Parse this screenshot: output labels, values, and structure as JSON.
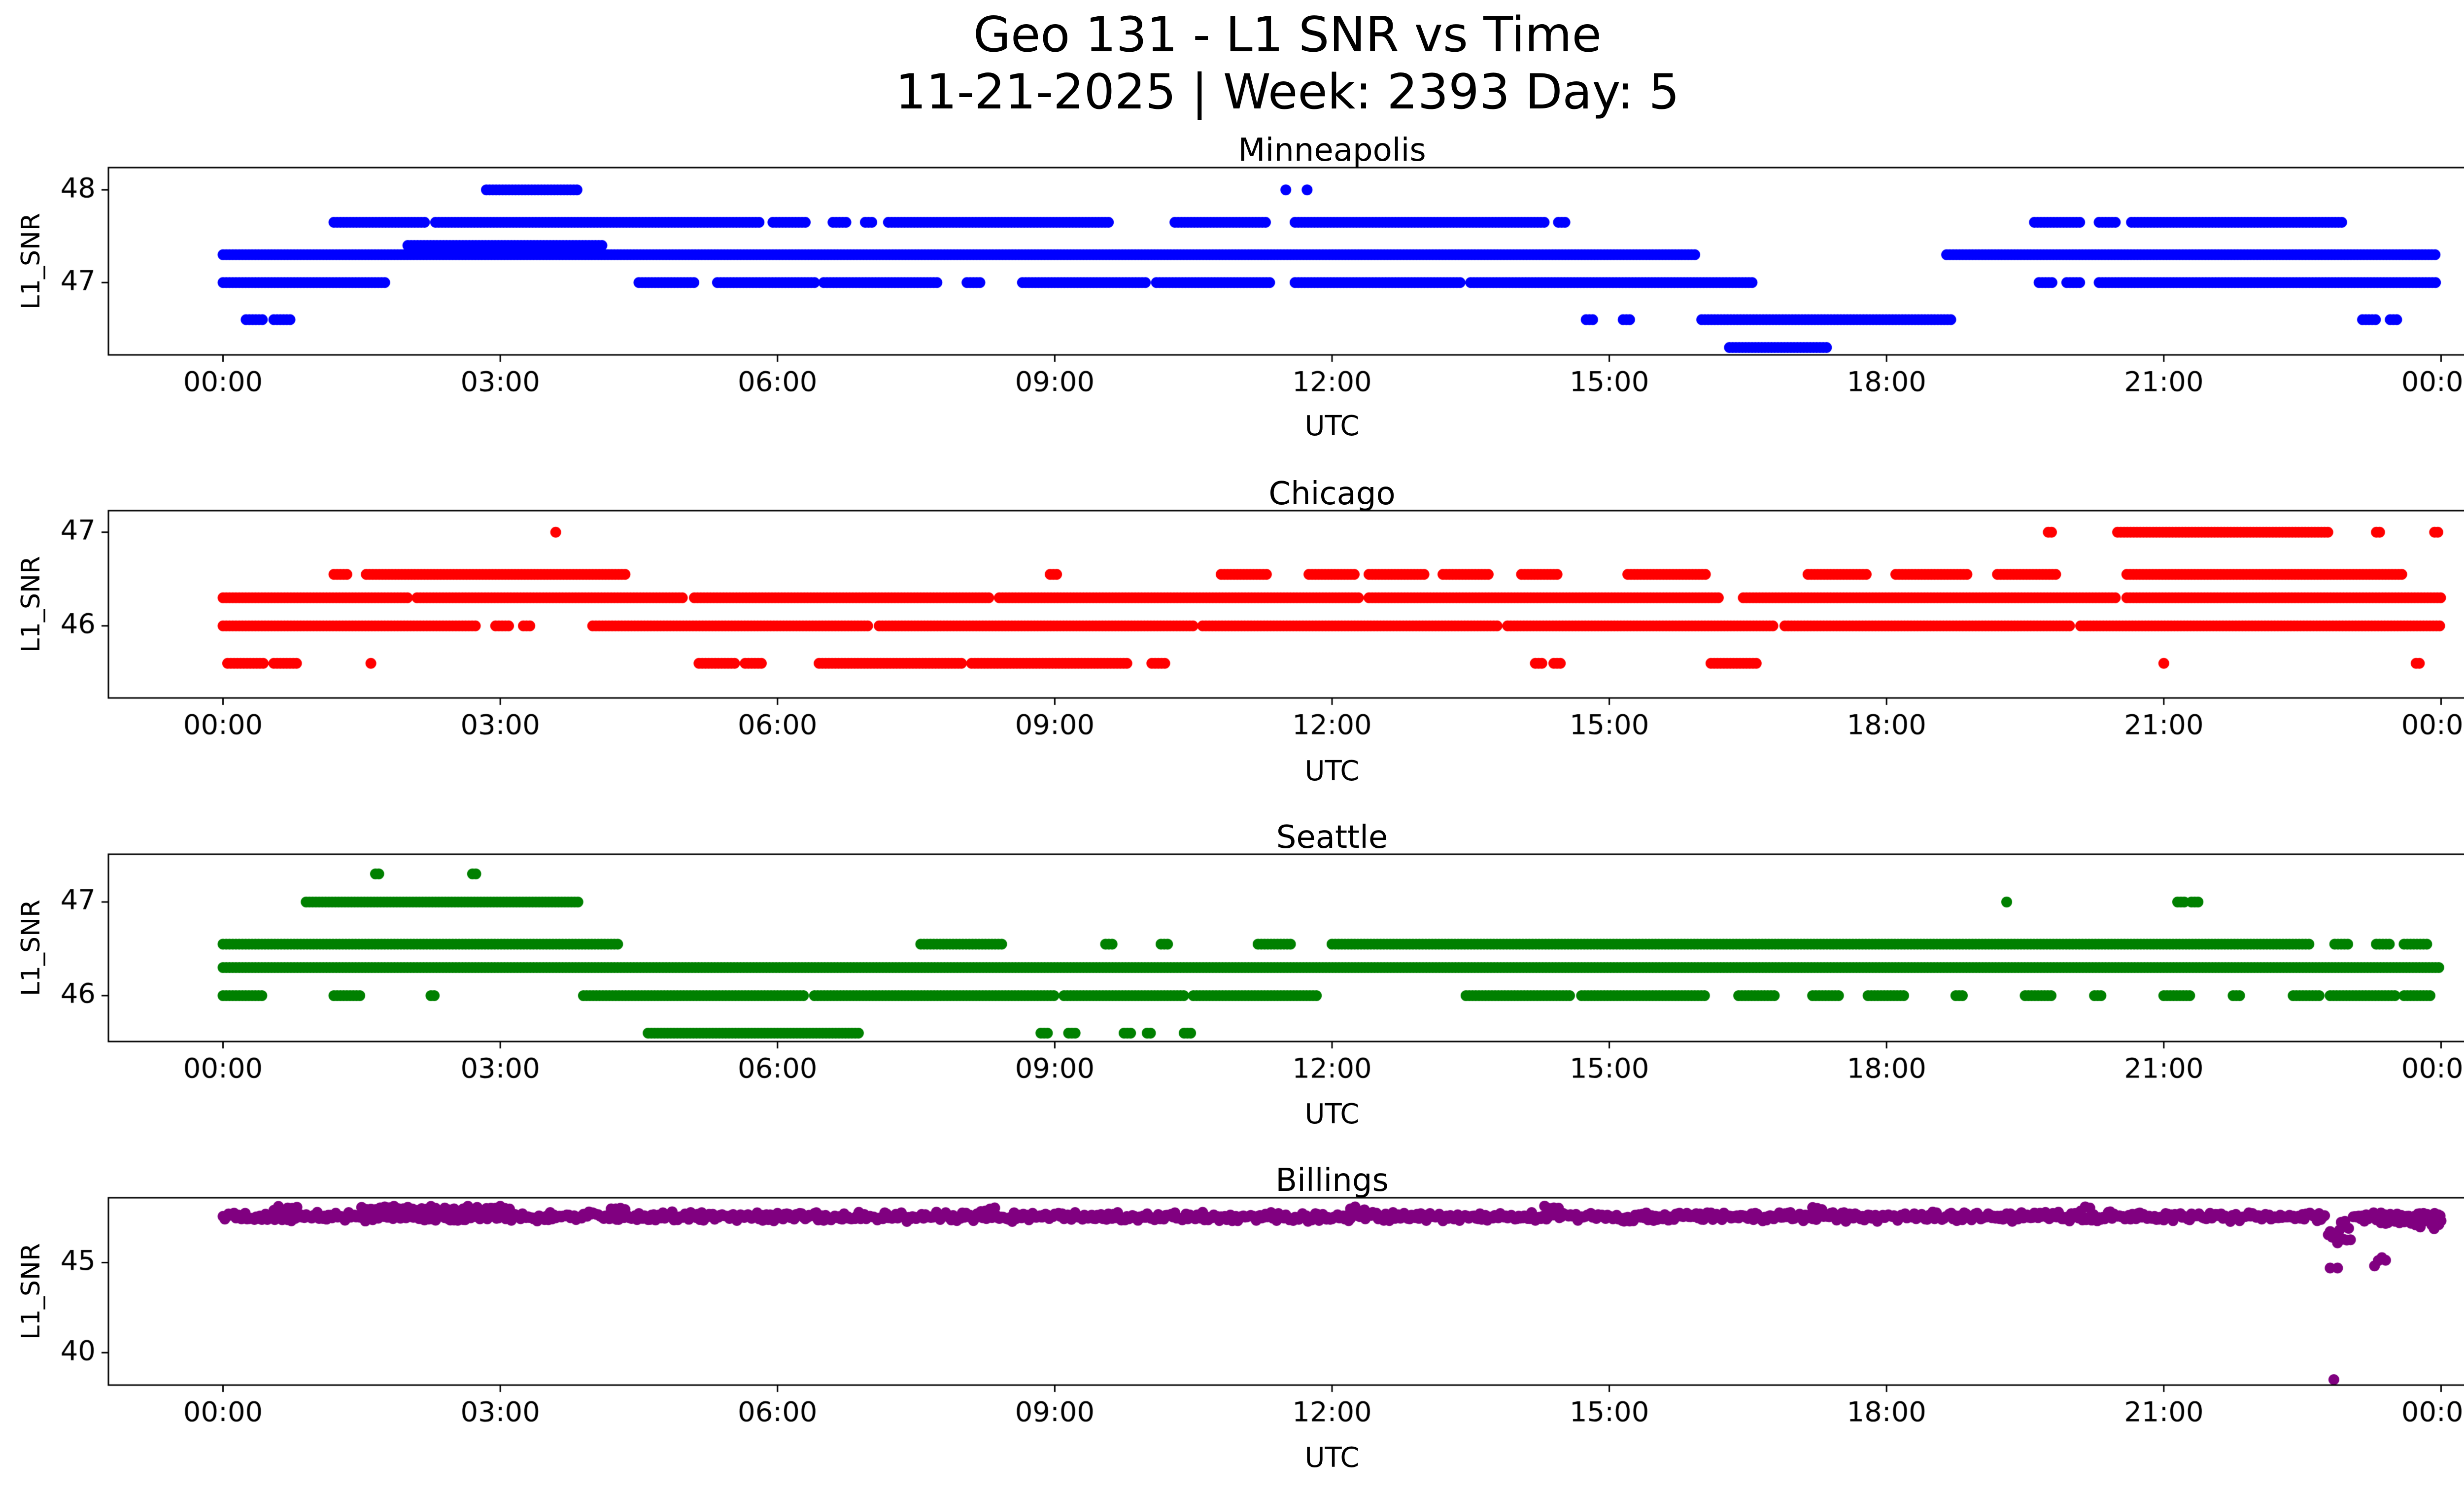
{
  "figure": {
    "title_line1": "Geo 131 - L1 SNR vs Time",
    "title_line2": "11-21-2025 | Week: 2393 Day: 5"
  },
  "chart_data": [
    {
      "type": "scatter",
      "title": "Minneapolis",
      "xlabel": "UTC",
      "ylabel": "L1_SNR",
      "color": "#0000ff",
      "xlim": [
        -1.24,
        25.24
      ],
      "ylim": [
        46.22,
        48.24
      ],
      "xticks": [
        0,
        3,
        6,
        9,
        12,
        15,
        18,
        21,
        24
      ],
      "xtick_labels": [
        "00:00",
        "03:00",
        "06:00",
        "09:00",
        "12:00",
        "15:00",
        "18:00",
        "21:00",
        "00:00"
      ],
      "yticks": [
        47,
        48
      ],
      "levels": [
        {
          "y": 48.0,
          "segments": [
            [
              2.85,
              3.85
            ],
            [
              11.5,
              11.52
            ],
            [
              11.73,
              11.75
            ]
          ]
        },
        {
          "y": 47.65,
          "segments": [
            [
              1.2,
              2.2
            ],
            [
              2.3,
              5.8
            ],
            [
              5.95,
              6.3
            ],
            [
              6.6,
              6.75
            ],
            [
              6.95,
              7.05
            ],
            [
              7.2,
              9.6
            ],
            [
              10.3,
              11.3
            ],
            [
              11.6,
              14.3
            ],
            [
              14.45,
              14.55
            ],
            [
              19.6,
              20.1
            ],
            [
              20.3,
              20.5
            ],
            [
              20.65,
              22.95
            ]
          ]
        },
        {
          "y": 47.4,
          "segments": [
            [
              2.0,
              4.1
            ]
          ]
        },
        {
          "y": 47.3,
          "segments": [
            [
              0.0,
              15.95
            ],
            [
              18.65,
              23.95
            ]
          ]
        },
        {
          "y": 47.0,
          "segments": [
            [
              0.0,
              1.75
            ],
            [
              4.5,
              5.1
            ],
            [
              5.35,
              6.4
            ],
            [
              6.5,
              7.75
            ],
            [
              8.05,
              8.2
            ],
            [
              8.65,
              10.0
            ],
            [
              10.1,
              11.35
            ],
            [
              11.6,
              13.4
            ],
            [
              13.5,
              16.55
            ],
            [
              19.65,
              19.8
            ],
            [
              19.95,
              20.1
            ],
            [
              20.3,
              23.95
            ]
          ]
        },
        {
          "y": 46.6,
          "segments": [
            [
              0.25,
              0.45
            ],
            [
              0.55,
              0.75
            ],
            [
              14.75,
              14.85
            ],
            [
              15.15,
              15.25
            ],
            [
              16.0,
              18.7
            ],
            [
              23.15,
              23.3
            ],
            [
              23.45,
              23.55
            ]
          ]
        },
        {
          "y": 46.3,
          "segments": [
            [
              16.3,
              17.35
            ]
          ]
        }
      ]
    },
    {
      "type": "scatter",
      "title": "Chicago",
      "xlabel": "UTC",
      "ylabel": "L1_SNR",
      "color": "#ff0000",
      "xlim": [
        -1.24,
        25.24
      ],
      "ylim": [
        45.23,
        47.23
      ],
      "xticks": [
        0,
        3,
        6,
        9,
        12,
        15,
        18,
        21,
        24
      ],
      "xtick_labels": [
        "00:00",
        "03:00",
        "06:00",
        "09:00",
        "12:00",
        "15:00",
        "18:00",
        "21:00",
        "00:00"
      ],
      "yticks": [
        46,
        47
      ],
      "levels": [
        {
          "y": 47.0,
          "segments": [
            [
              3.6,
              3.6
            ],
            [
              19.75,
              19.8
            ],
            [
              20.5,
              22.8
            ],
            [
              23.3,
              23.35
            ],
            [
              23.93,
              23.97
            ]
          ]
        },
        {
          "y": 46.55,
          "segments": [
            [
              1.2,
              1.35
            ],
            [
              1.55,
              4.35
            ],
            [
              8.95,
              9.05
            ],
            [
              10.8,
              11.3
            ],
            [
              11.75,
              12.25
            ],
            [
              12.4,
              13.0
            ],
            [
              13.2,
              13.7
            ],
            [
              14.05,
              14.45
            ],
            [
              15.2,
              16.05
            ],
            [
              17.15,
              17.8
            ],
            [
              18.1,
              18.9
            ],
            [
              19.2,
              19.85
            ],
            [
              20.6,
              23.6
            ]
          ]
        },
        {
          "y": 46.3,
          "segments": [
            [
              0.0,
              2.0
            ],
            [
              2.1,
              5.0
            ],
            [
              5.1,
              8.3
            ],
            [
              8.4,
              12.3
            ],
            [
              12.4,
              16.2
            ],
            [
              16.45,
              20.5
            ],
            [
              20.6,
              24.0
            ]
          ]
        },
        {
          "y": 46.0,
          "segments": [
            [
              0.0,
              2.75
            ],
            [
              2.95,
              3.1
            ],
            [
              3.25,
              3.35
            ],
            [
              4.0,
              7.0
            ],
            [
              7.1,
              10.5
            ],
            [
              10.6,
              13.8
            ],
            [
              13.9,
              16.8
            ],
            [
              16.9,
              20.0
            ],
            [
              20.1,
              24.0
            ]
          ]
        },
        {
          "y": 45.6,
          "segments": [
            [
              0.05,
              0.45
            ],
            [
              0.55,
              0.8
            ],
            [
              1.6,
              1.63
            ],
            [
              5.15,
              5.55
            ],
            [
              5.65,
              5.85
            ],
            [
              6.45,
              8.0
            ],
            [
              8.1,
              9.8
            ],
            [
              10.05,
              10.2
            ],
            [
              14.2,
              14.3
            ],
            [
              14.4,
              14.5
            ],
            [
              16.1,
              16.6
            ],
            [
              21.0,
              21.03
            ],
            [
              23.73,
              23.77
            ]
          ]
        }
      ]
    },
    {
      "type": "scatter",
      "title": "Seattle",
      "xlabel": "UTC",
      "ylabel": "L1_SNR",
      "color": "#008000",
      "xlim": [
        -1.24,
        25.24
      ],
      "ylim": [
        45.51,
        47.51
      ],
      "xticks": [
        0,
        3,
        6,
        9,
        12,
        15,
        18,
        21,
        24
      ],
      "xtick_labels": [
        "00:00",
        "03:00",
        "06:00",
        "09:00",
        "12:00",
        "15:00",
        "18:00",
        "21:00",
        "00:00"
      ],
      "yticks": [
        46,
        47
      ],
      "levels": [
        {
          "y": 47.3,
          "segments": [
            [
              1.65,
              1.7
            ],
            [
              2.7,
              2.76
            ]
          ]
        },
        {
          "y": 47.0,
          "segments": [
            [
              0.9,
              3.85
            ],
            [
              19.3,
              19.33
            ],
            [
              21.15,
              21.23
            ],
            [
              21.3,
              21.38
            ]
          ]
        },
        {
          "y": 46.55,
          "segments": [
            [
              0.0,
              4.3
            ],
            [
              7.55,
              8.45
            ],
            [
              9.55,
              9.62
            ],
            [
              10.15,
              10.22
            ],
            [
              11.2,
              11.55
            ],
            [
              12.0,
              22.6
            ],
            [
              22.85,
              23.0
            ],
            [
              23.3,
              23.45
            ],
            [
              23.6,
              23.85
            ]
          ]
        },
        {
          "y": 46.3,
          "segments": [
            [
              0.0,
              24.0
            ]
          ]
        },
        {
          "y": 46.0,
          "segments": [
            [
              0.0,
              0.45
            ],
            [
              1.2,
              1.5
            ],
            [
              2.25,
              2.3
            ],
            [
              3.9,
              6.3
            ],
            [
              6.4,
              9.0
            ],
            [
              9.1,
              10.4
            ],
            [
              10.5,
              11.85
            ],
            [
              13.45,
              14.6
            ],
            [
              14.7,
              16.05
            ],
            [
              16.4,
              16.8
            ],
            [
              17.2,
              17.5
            ],
            [
              17.8,
              18.2
            ],
            [
              18.75,
              18.85
            ],
            [
              19.5,
              19.8
            ],
            [
              20.25,
              20.33
            ],
            [
              21.0,
              21.3
            ],
            [
              21.75,
              21.83
            ],
            [
              22.4,
              22.7
            ],
            [
              22.8,
              23.5
            ],
            [
              23.6,
              23.9
            ]
          ]
        },
        {
          "y": 45.6,
          "segments": [
            [
              4.6,
              6.9
            ],
            [
              8.85,
              8.92
            ],
            [
              9.15,
              9.22
            ],
            [
              9.75,
              9.82
            ],
            [
              10.0,
              10.05
            ],
            [
              10.4,
              10.48
            ]
          ]
        }
      ]
    },
    {
      "type": "scatter",
      "title": "Billings",
      "xlabel": "UTC",
      "ylabel": "L1_SNR",
      "color": "#800080",
      "xlim": [
        -1.24,
        25.24
      ],
      "ylim": [
        38.2,
        48.6
      ],
      "xticks": [
        0,
        3,
        6,
        9,
        12,
        15,
        18,
        21,
        24
      ],
      "xtick_labels": [
        "00:00",
        "03:00",
        "06:00",
        "09:00",
        "12:00",
        "15:00",
        "18:00",
        "21:00",
        "00:00"
      ],
      "yticks": [
        40,
        45
      ],
      "levels": [
        {
          "y": 47.55,
          "jitter": 0.28,
          "step": 0.02,
          "segments": [
            [
              0.0,
              22.75
            ],
            [
              23.05,
              24.0
            ]
          ]
        },
        {
          "y": 48.0,
          "jitter": 0.22,
          "step": 0.05,
          "segments": [
            [
              0.55,
              0.8
            ],
            [
              1.5,
              3.1
            ],
            [
              4.2,
              4.35
            ],
            [
              8.2,
              8.35
            ],
            [
              12.2,
              12.35
            ],
            [
              14.3,
              14.45
            ],
            [
              17.2,
              17.3
            ],
            [
              20.1,
              20.2
            ]
          ]
        },
        {
          "y": 46.6,
          "jitter": 0.9,
          "step": 0.02,
          "segments": [
            [
              22.78,
              23.02
            ]
          ]
        },
        {
          "y": 47.3,
          "jitter": 0.5,
          "step": 0.025,
          "segments": [
            [
              23.3,
              24.0
            ]
          ]
        },
        {
          "y": 45.0,
          "jitter": 0.35,
          "step": 0.04,
          "segments": [
            [
              23.28,
              23.42
            ]
          ]
        },
        {
          "y": 44.7,
          "segments": [
            [
              22.8,
              22.8
            ],
            [
              22.88,
              22.88
            ]
          ]
        },
        {
          "y": 38.5,
          "segments": [
            [
              22.84,
              22.84
            ]
          ]
        }
      ]
    }
  ]
}
